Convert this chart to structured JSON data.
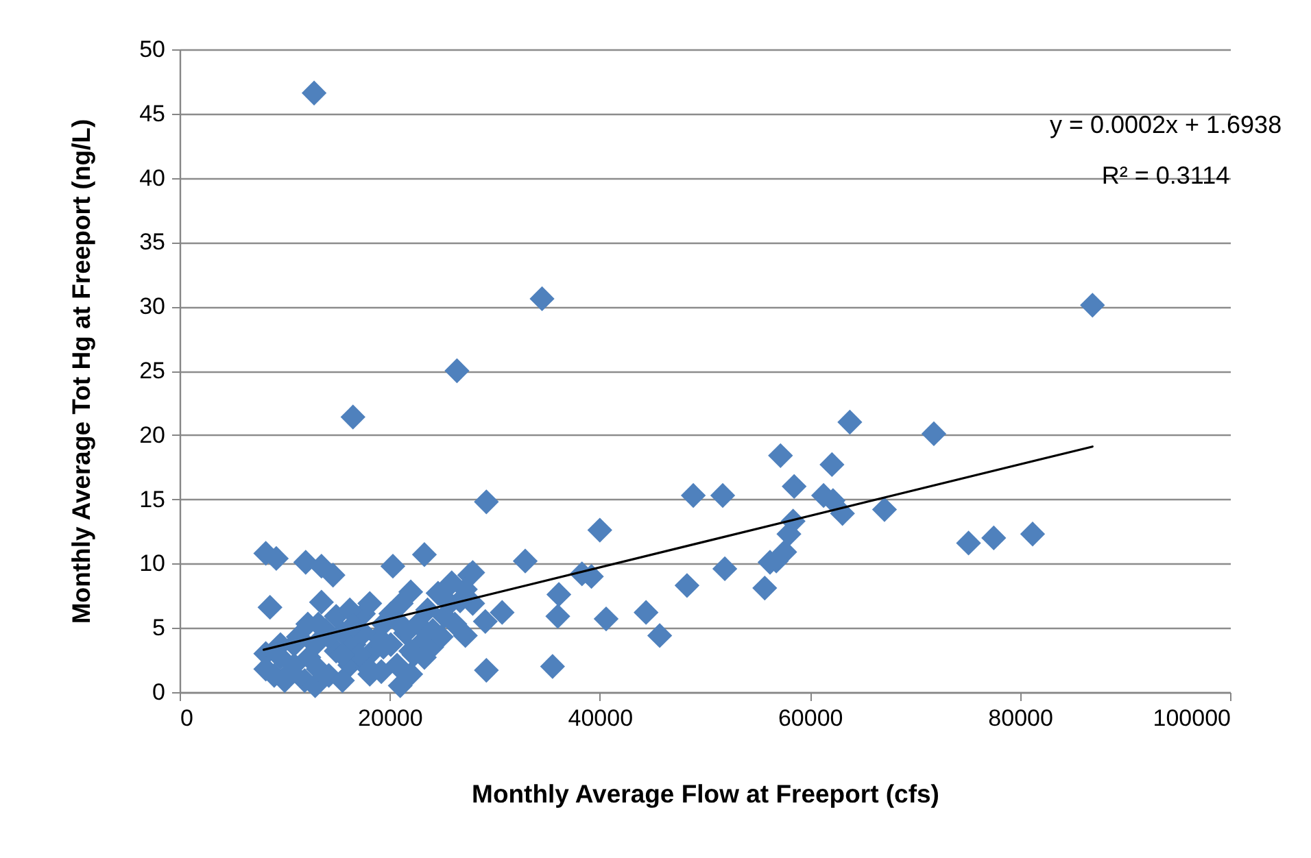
{
  "chart_data": {
    "type": "scatter",
    "xlabel": "Monthly Average Flow at Freeport (cfs)",
    "ylabel": "Monthly Average Tot Hg at Freeport (ng/L)",
    "xlim": [
      0,
      100000
    ],
    "xticks": [
      0,
      20000,
      40000,
      60000,
      80000,
      100000
    ],
    "ylim": [
      0,
      50
    ],
    "yticks": [
      0,
      5,
      10,
      15,
      20,
      25,
      30,
      35,
      40,
      45,
      50
    ],
    "grid": "y",
    "marker": "diamond",
    "annotations": [
      "y = 0.0002x + 1.6938",
      "R² = 0.3114"
    ],
    "series": [
      {
        "color": "#4f81bd",
        "x": [
          12800,
          16500,
          26400,
          34500,
          86900,
          48300,
          48900,
          51700,
          51900,
          55700,
          56200,
          56800,
          57600,
          58000,
          58400,
          58500,
          57200,
          61300,
          62100,
          62200,
          63100,
          63800,
          67100,
          71800,
          75100,
          77500,
          81200,
          29200,
          27600,
          27900,
          32900,
          40000,
          38300,
          39200,
          36100,
          36000,
          35500,
          29200,
          30700,
          29100,
          27200,
          40600,
          44400,
          45700,
          8200,
          9200,
          8600,
          12000,
          13500,
          14600,
          20300,
          23300,
          22000,
          13500,
          8200,
          8200,
          9000,
          9600,
          10000,
          10900,
          11900,
          12300,
          12900,
          13200,
          13900,
          14200,
          14900,
          15500,
          16200,
          16600,
          17500,
          17900,
          18400,
          18900,
          19400,
          20100,
          20700,
          21100,
          21500,
          22000,
          22300,
          22700,
          23100,
          23600,
          24100,
          24600,
          25200,
          25700,
          26200,
          26700,
          27200,
          23300,
          12900,
          15500,
          10600,
          11300,
          14900,
          18100,
          16200,
          20100,
          9600,
          17100,
          19200,
          21000,
          24000,
          24900,
          10900,
          12200,
          14200,
          15500,
          17500,
          19400,
          18100,
          22000,
          13200,
          21000,
          16500,
          25900,
          27900
        ],
        "values": [
          46.6,
          21.4,
          25.0,
          30.6,
          30.1,
          8.3,
          15.3,
          15.3,
          9.6,
          8.1,
          10.1,
          10.2,
          10.9,
          12.3,
          13.3,
          16.0,
          18.4,
          15.3,
          17.7,
          14.9,
          13.9,
          21.0,
          14.2,
          20.1,
          11.6,
          12.0,
          12.3,
          14.8,
          9.1,
          9.3,
          10.2,
          12.6,
          9.2,
          9.0,
          7.6,
          5.9,
          2.0,
          1.7,
          6.2,
          5.5,
          4.4,
          5.7,
          6.2,
          4.4,
          10.8,
          10.4,
          6.6,
          10.1,
          9.8,
          9.1,
          9.8,
          10.7,
          7.8,
          7.0,
          3.0,
          1.8,
          1.3,
          3.7,
          0.9,
          2.1,
          0.9,
          2.7,
          3.7,
          5.3,
          4.8,
          1.3,
          3.2,
          4.6,
          2.1,
          3.7,
          6.1,
          1.9,
          3.2,
          4.3,
          5.3,
          3.7,
          2.1,
          6.9,
          4.6,
          1.4,
          2.9,
          5.3,
          3.9,
          6.4,
          4.8,
          7.7,
          5.9,
          6.9,
          5.3,
          7.1,
          8.0,
          2.7,
          0.5,
          0.9,
          1.6,
          4.3,
          5.9,
          6.9,
          6.4,
          6.1,
          2.7,
          2.9,
          1.6,
          0.5,
          3.5,
          4.3,
          3.7,
          5.3,
          4.3,
          2.9,
          4.6,
          3.5,
          1.4,
          3.2,
          1.8,
          5.3,
          5.2,
          8.5,
          6.9
        ]
      },
      {
        "type": "line",
        "color": "#000000",
        "marker": "none",
        "x": [
          8000,
          86900
        ],
        "values": [
          3.3,
          19.1
        ]
      }
    ]
  }
}
